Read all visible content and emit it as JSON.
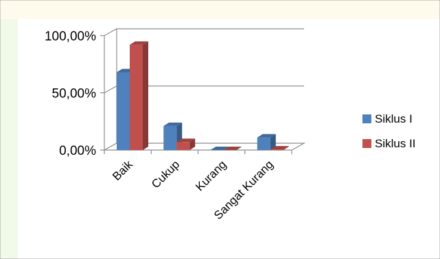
{
  "chart_data": {
    "type": "bar",
    "categories": [
      "Baik",
      "Cukup",
      "Kurang",
      "Sangat Kurang"
    ],
    "series": [
      {
        "name": "Siklus I",
        "values": [
          68,
          21,
          0,
          11
        ],
        "color": "#4f81bd"
      },
      {
        "name": "Siklus II",
        "values": [
          92,
          7,
          0,
          0.5
        ],
        "color": "#c0504d"
      }
    ],
    "y_ticks": [
      "0,00%",
      "50,00%",
      "100,00%"
    ],
    "ylim": [
      0,
      100
    ],
    "grid": true,
    "legend_position": "right",
    "bar_style": "3d-clustered",
    "title": "",
    "xlabel": "",
    "ylabel": ""
  }
}
